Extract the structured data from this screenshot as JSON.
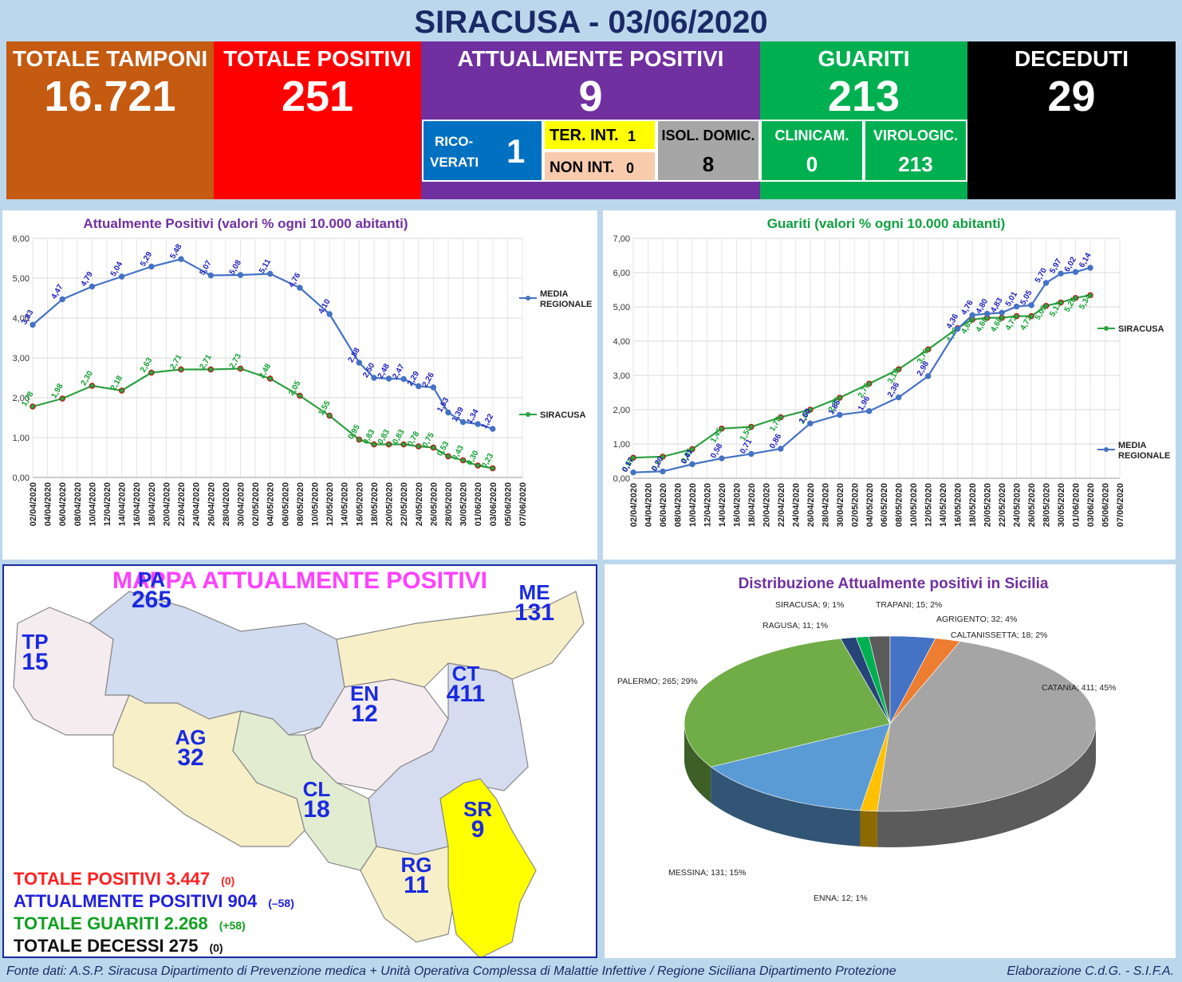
{
  "header": {
    "title": "SIRACUSA -  03/06/2020"
  },
  "tiles": {
    "tamponi": {
      "label": "TOTALE TAMPONI",
      "value": "16.721",
      "color": "#c55a11"
    },
    "positivi": {
      "label": "TOTALE POSITIVI",
      "value": "251",
      "color": "#ff0000"
    },
    "attuali": {
      "label": "ATTUALMENTE POSITIVI",
      "value": "9",
      "color": "#7030a0"
    },
    "guariti": {
      "label": "GUARITI",
      "value": "213",
      "color": "#00b050"
    },
    "deceduti": {
      "label": "DECEDUTI",
      "value": "29",
      "color": "#000000"
    }
  },
  "subtiles": {
    "ricoverati": {
      "label1": "RICO-",
      "label2": "VERATI",
      "value": "1"
    },
    "ter_int": {
      "label": "TER. INT.",
      "value": "1"
    },
    "non_int": {
      "label": "NON INT.",
      "value": "0"
    },
    "isol": {
      "label": "ISOL. DOMIC.",
      "value": "8"
    },
    "clinicam": {
      "label": "CLINICAM.",
      "value": "0"
    },
    "virologic": {
      "label": "VIROLOGIC.",
      "value": "213"
    }
  },
  "map": {
    "title": "MAPPA ATTUALMENTE POSITIVI",
    "provinces": [
      {
        "code": "PA",
        "value": "265"
      },
      {
        "code": "ME",
        "value": "131"
      },
      {
        "code": "TP",
        "value": "15"
      },
      {
        "code": "CT",
        "value": "411"
      },
      {
        "code": "EN",
        "value": "12"
      },
      {
        "code": "AG",
        "value": "32"
      },
      {
        "code": "CL",
        "value": "18"
      },
      {
        "code": "SR",
        "value": "9"
      },
      {
        "code": "RG",
        "value": "11"
      }
    ],
    "totals": [
      {
        "label": "TOTALE POSITIVI 3.447",
        "delta": "(0)",
        "color": "#ff2020"
      },
      {
        "label": "ATTUALMENTE POSITIVI 904",
        "delta": "(–58)",
        "color": "#2020e0"
      },
      {
        "label": "TOTALE GUARITI 2.268",
        "delta": "(+58)",
        "color": "#10a020"
      },
      {
        "label": "TOTALE DECESSI 275",
        "delta": "(0)",
        "color": "#111111"
      }
    ]
  },
  "footer": {
    "source": "Fonte dati: A.S.P. Siracusa Dipartimento di Prevenzione medica + Unità Operativa Complessa di Malattie Infettive / Regione Siciliana Dipartimento Protezione",
    "credit": "Elaborazione C.d.G. - S.I.F.A."
  },
  "chart_data": [
    {
      "type": "line",
      "title": "Attualmente Positivi (valori % ogni 10.000 abitanti)",
      "title_color": "#7030a0",
      "ylim": [
        0,
        6
      ],
      "yticks": [
        "0,00",
        "1,00",
        "2,00",
        "3,00",
        "4,00",
        "5,00",
        "6,00"
      ],
      "categories": [
        "02/04/2020",
        "04/04/2020",
        "06/04/2020",
        "08/04/2020",
        "10/04/2020",
        "12/04/2020",
        "14/04/2020",
        "16/04/2020",
        "18/04/2020",
        "20/04/2020",
        "22/04/2020",
        "24/04/2020",
        "26/04/2020",
        "28/04/2020",
        "30/04/2020",
        "02/05/2020",
        "04/05/2020",
        "06/05/2020",
        "08/05/2020",
        "10/05/2020",
        "12/05/2020",
        "14/05/2020",
        "16/05/2020",
        "18/05/2020",
        "20/05/2020",
        "22/05/2020",
        "24/05/2020",
        "26/05/2020",
        "28/05/2020",
        "30/05/2020",
        "01/06/2020",
        "03/06/2020",
        "05/06/2020",
        "07/06/2020"
      ],
      "series": [
        {
          "name": "MEDIA REGIONALE",
          "color": "#4472c4",
          "label_color": "#2020c0",
          "points": [
            [
              0,
              3.83,
              "3,83"
            ],
            [
              2,
              4.47,
              "4,47"
            ],
            [
              4,
              4.79,
              "4,79"
            ],
            [
              6,
              5.04,
              "5,04"
            ],
            [
              8,
              5.29,
              "5,29"
            ],
            [
              10,
              5.48,
              "5,48"
            ],
            [
              12,
              5.07,
              "5,07"
            ],
            [
              14,
              5.08,
              "5,08"
            ],
            [
              16,
              5.11,
              "5,11"
            ],
            [
              18,
              4.76,
              "4,76"
            ],
            [
              20,
              4.1,
              "4,10"
            ],
            [
              22,
              2.88,
              "2,88"
            ],
            [
              23,
              2.5,
              "2,50"
            ],
            [
              24,
              2.48,
              "2,48"
            ],
            [
              25,
              2.47,
              "2,47"
            ],
            [
              26,
              2.29,
              "2,29"
            ],
            [
              27,
              2.26,
              "2,26"
            ],
            [
              28,
              1.63,
              "1,63"
            ],
            [
              29,
              1.39,
              "1,39"
            ],
            [
              30,
              1.34,
              "1,34"
            ],
            [
              31,
              1.22,
              "1,22"
            ]
          ]
        },
        {
          "name": "SIRACUSA",
          "color": "#2ea043",
          "label_color": "#10a030",
          "points": [
            [
              0,
              1.78,
              "1,78"
            ],
            [
              2,
              1.98,
              "1,98"
            ],
            [
              4,
              2.3,
              "2,30"
            ],
            [
              6,
              2.18,
              "2,18"
            ],
            [
              8,
              2.63,
              "2,63"
            ],
            [
              10,
              2.71,
              "2,71"
            ],
            [
              12,
              2.71,
              "2,71"
            ],
            [
              14,
              2.73,
              "2,73"
            ],
            [
              16,
              2.48,
              "2,48"
            ],
            [
              18,
              2.05,
              "2,05"
            ],
            [
              20,
              1.55,
              "1,55"
            ],
            [
              22,
              0.95,
              "0,95"
            ],
            [
              23,
              0.83,
              "0,83"
            ],
            [
              24,
              0.83,
              "0,83"
            ],
            [
              25,
              0.83,
              "0,83"
            ],
            [
              26,
              0.78,
              "0,78"
            ],
            [
              27,
              0.75,
              "0,75"
            ],
            [
              28,
              0.53,
              "0,53"
            ],
            [
              29,
              0.43,
              "0,43"
            ],
            [
              30,
              0.3,
              "0,30"
            ],
            [
              31,
              0.23,
              "0,23"
            ]
          ]
        }
      ]
    },
    {
      "type": "line",
      "title": "Guariti (valori % ogni 10.000 abitanti)",
      "title_color": "#10a040",
      "ylim": [
        0,
        7
      ],
      "yticks": [
        "0,00",
        "1,00",
        "2,00",
        "3,00",
        "4,00",
        "5,00",
        "6,00",
        "7,00"
      ],
      "categories": [
        "02/04/2020",
        "04/04/2020",
        "06/04/2020",
        "08/04/2020",
        "10/04/2020",
        "12/04/2020",
        "14/04/2020",
        "16/04/2020",
        "18/04/2020",
        "20/04/2020",
        "22/04/2020",
        "24/04/2020",
        "26/04/2020",
        "28/04/2020",
        "30/04/2020",
        "02/05/2020",
        "04/05/2020",
        "06/05/2020",
        "08/05/2020",
        "10/05/2020",
        "12/05/2020",
        "14/05/2020",
        "16/05/2020",
        "18/05/2020",
        "20/05/2020",
        "22/05/2020",
        "24/05/2020",
        "26/05/2020",
        "28/05/2020",
        "30/05/2020",
        "01/06/2020",
        "03/06/2020",
        "05/06/2020",
        "07/06/2020"
      ],
      "series": [
        {
          "name": "SIRACUSA",
          "color": "#2ea043",
          "label_color": "#10a030",
          "points": [
            [
              0,
              0.6,
              "0,60"
            ],
            [
              2,
              0.63,
              "0,63"
            ],
            [
              4,
              0.85,
              "0,85"
            ],
            [
              6,
              1.45,
              "1,45"
            ],
            [
              8,
              1.5,
              "1,50"
            ],
            [
              10,
              1.78,
              "1,78"
            ],
            [
              12,
              2.0,
              "2,00"
            ],
            [
              14,
              2.35,
              "2,35"
            ],
            [
              16,
              2.76,
              "2,76"
            ],
            [
              18,
              3.18,
              "3,18"
            ],
            [
              20,
              3.76,
              "3,76"
            ],
            [
              22,
              4.38,
              "4,38"
            ],
            [
              23,
              4.63,
              "4,63"
            ],
            [
              24,
              4.68,
              "4,68"
            ],
            [
              25,
              4.68,
              "4,68"
            ],
            [
              26,
              4.73,
              "4,73"
            ],
            [
              27,
              4.73,
              "4,73"
            ],
            [
              28,
              5.03,
              "5,03"
            ],
            [
              29,
              5.13,
              "5,13"
            ],
            [
              30,
              5.26,
              "5,26"
            ],
            [
              31,
              5.34,
              "5,34"
            ]
          ]
        },
        {
          "name": "MEDIA REGIONALE",
          "color": "#4472c4",
          "label_color": "#2020c0",
          "points": [
            [
              0,
              0.17,
              "0,17"
            ],
            [
              2,
              0.2,
              "0,20"
            ],
            [
              4,
              0.41,
              "0,41"
            ],
            [
              6,
              0.58,
              "0,58"
            ],
            [
              8,
              0.71,
              "0,71"
            ],
            [
              10,
              0.86,
              "0,86"
            ],
            [
              12,
              1.6,
              "1,60"
            ],
            [
              14,
              1.85,
              "1,85"
            ],
            [
              16,
              1.96,
              "1,96"
            ],
            [
              18,
              2.36,
              "2,36"
            ],
            [
              20,
              2.98,
              "2,98"
            ],
            [
              22,
              4.36,
              "4,36"
            ],
            [
              23,
              4.76,
              "4,76"
            ],
            [
              24,
              4.8,
              "4,80"
            ],
            [
              25,
              4.83,
              "4,83"
            ],
            [
              26,
              5.01,
              "5,01"
            ],
            [
              27,
              5.05,
              "5,05"
            ],
            [
              28,
              5.7,
              "5,70"
            ],
            [
              29,
              5.97,
              "5,97"
            ],
            [
              30,
              6.02,
              "6,02"
            ],
            [
              31,
              6.14,
              "6,14"
            ]
          ]
        }
      ]
    },
    {
      "type": "pie",
      "title": "Distribuzione Attualmente positivi in Sicilia",
      "slices": [
        {
          "name": "TRAPANI",
          "value": 15,
          "pct": "2%",
          "label": "TRAPANI; 15; 2%",
          "color": "#5a5a5a"
        },
        {
          "name": "AGRIGENTO",
          "value": 32,
          "pct": "4%",
          "label": "AGRIGENTO; 32; 4%",
          "color": "#4472c4"
        },
        {
          "name": "CALTANISSETTA",
          "value": 18,
          "pct": "2%",
          "label": "CALTANISSETTA; 18; 2%",
          "color": "#ed7d31"
        },
        {
          "name": "CATANIA",
          "value": 411,
          "pct": "45%",
          "label": "CATANIA; 411; 45%",
          "color": "#a5a5a5"
        },
        {
          "name": "ENNA",
          "value": 12,
          "pct": "1%",
          "label": "ENNA; 12; 1%",
          "color": "#ffc000"
        },
        {
          "name": "MESSINA",
          "value": 131,
          "pct": "15%",
          "label": "MESSINA; 131; 15%",
          "color": "#5b9bd5"
        },
        {
          "name": "PALERMO",
          "value": 265,
          "pct": "29%",
          "label": "PALERMO; 265; 29%",
          "color": "#70ad47"
        },
        {
          "name": "RAGUSA",
          "value": 11,
          "pct": "1%",
          "label": "RAGUSA; 11; 1%",
          "color": "#264478"
        },
        {
          "name": "SIRACUSA",
          "value": 9,
          "pct": "1%",
          "label": "SIRACUSA; 9; 1%",
          "color": "#00b050"
        }
      ]
    }
  ]
}
